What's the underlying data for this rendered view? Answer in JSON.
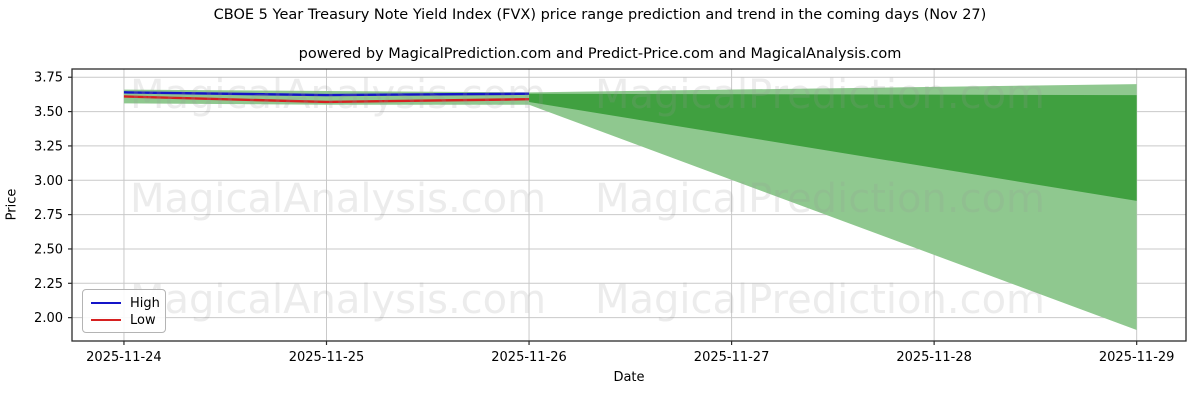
{
  "title": "CBOE 5 Year Treasury Note Yield Index (FVX) price range prediction and trend in the coming days (Nov 27)",
  "subtitle": "powered by MagicalPrediction.com and Predict-Price.com and MagicalAnalysis.com",
  "watermarks": {
    "left_text": "MagicalAnalysis.com",
    "right_text": "MagicalPrediction.com",
    "color": "#999999",
    "opacity": 0.18
  },
  "legend": {
    "items": [
      {
        "label": "High",
        "color": "#1414c8"
      },
      {
        "label": "Low",
        "color": "#d62020"
      }
    ]
  },
  "colors": {
    "high_line": "#1414c8",
    "low_line": "#d62020",
    "inner_band": "#40a040",
    "outer_band": "#8fc88f",
    "gridline": "#c9c9c9",
    "spine": "#2b2b2b"
  },
  "chart_data": {
    "type": "line",
    "title": "CBOE 5 Year Treasury Note Yield Index (FVX) price range prediction and trend in the coming days (Nov 27)",
    "xlabel": "Date",
    "ylabel": "Price",
    "x_tick_labels": [
      "2025-11-24",
      "2025-11-25",
      "2025-11-26",
      "2025-11-27",
      "2025-11-28",
      "2025-11-29"
    ],
    "y_tick_labels": [
      "2.00",
      "2.25",
      "2.50",
      "2.75",
      "3.00",
      "3.25",
      "3.50",
      "3.75"
    ],
    "y_tick_values": [
      2.0,
      2.25,
      2.5,
      2.75,
      3.0,
      3.25,
      3.5,
      3.75
    ],
    "ylim": [
      1.83,
      3.81
    ],
    "grid": true,
    "legend_position": "lower left",
    "series": [
      {
        "name": "High",
        "color": "#1414c8",
        "x": [
          0,
          1,
          2
        ],
        "values": [
          3.64,
          3.62,
          3.63
        ]
      },
      {
        "name": "Low",
        "color": "#d62020",
        "x": [
          0,
          1,
          2
        ],
        "values": [
          3.61,
          3.57,
          3.59
        ]
      }
    ],
    "bands": [
      {
        "name": "history-range-band",
        "color": "#8fc88f",
        "x": [
          0,
          1,
          2
        ],
        "top": [
          3.66,
          3.65,
          3.64
        ],
        "bottom": [
          3.56,
          3.55,
          3.55
        ]
      },
      {
        "name": "prediction-band-outer",
        "color": "#8fc88f",
        "x": [
          2,
          5
        ],
        "top": [
          3.64,
          3.7
        ],
        "bottom": [
          3.55,
          1.91
        ]
      },
      {
        "name": "prediction-band-inner",
        "color": "#40a040",
        "x": [
          2,
          5
        ],
        "top": [
          3.63,
          3.62
        ],
        "bottom": [
          3.57,
          2.85
        ]
      }
    ]
  }
}
